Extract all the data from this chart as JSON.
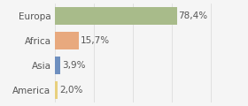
{
  "categories": [
    "Europa",
    "Africa",
    "Asia",
    "America"
  ],
  "values": [
    78.4,
    15.7,
    3.9,
    2.0
  ],
  "labels": [
    "78,4%",
    "15,7%",
    "3,9%",
    "2,0%"
  ],
  "bar_colors": [
    "#a8bb8a",
    "#e8a97e",
    "#6e8fbf",
    "#e8d07e"
  ],
  "background_color": "#f5f5f5",
  "xlim": [
    0,
    105
  ],
  "bar_height": 0.72,
  "label_fontsize": 7.5,
  "tick_fontsize": 7.5,
  "grid_color": "#dddddd",
  "grid_xticks": [
    0,
    25,
    50,
    75,
    100
  ]
}
